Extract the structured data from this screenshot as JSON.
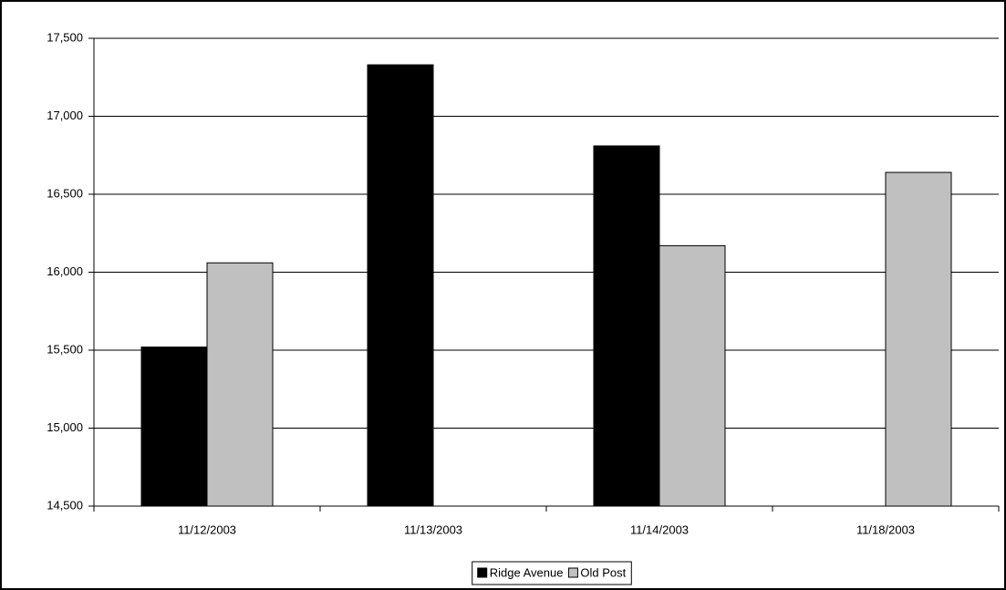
{
  "chart_data": {
    "type": "bar",
    "categories": [
      "11/12/2003",
      "11/13/2003",
      "11/14/2003",
      "11/18/2003"
    ],
    "series": [
      {
        "name": "Ridge Avenue",
        "color": "#000000",
        "values": [
          15520,
          17330,
          16810,
          null
        ]
      },
      {
        "name": "Old Post",
        "color": "#c0c0c0",
        "values": [
          16060,
          null,
          16170,
          16640
        ]
      }
    ],
    "ylim": [
      14500,
      17500
    ],
    "yticks": [
      {
        "value": 14500,
        "label": "14,500"
      },
      {
        "value": 15000,
        "label": "15,000"
      },
      {
        "value": 15500,
        "label": "15,500"
      },
      {
        "value": 16000,
        "label": "16,000"
      },
      {
        "value": 16500,
        "label": "16,500"
      },
      {
        "value": 17000,
        "label": "17,000"
      },
      {
        "value": 17500,
        "label": "17,500"
      }
    ],
    "grid": true,
    "legend": "bottom"
  }
}
